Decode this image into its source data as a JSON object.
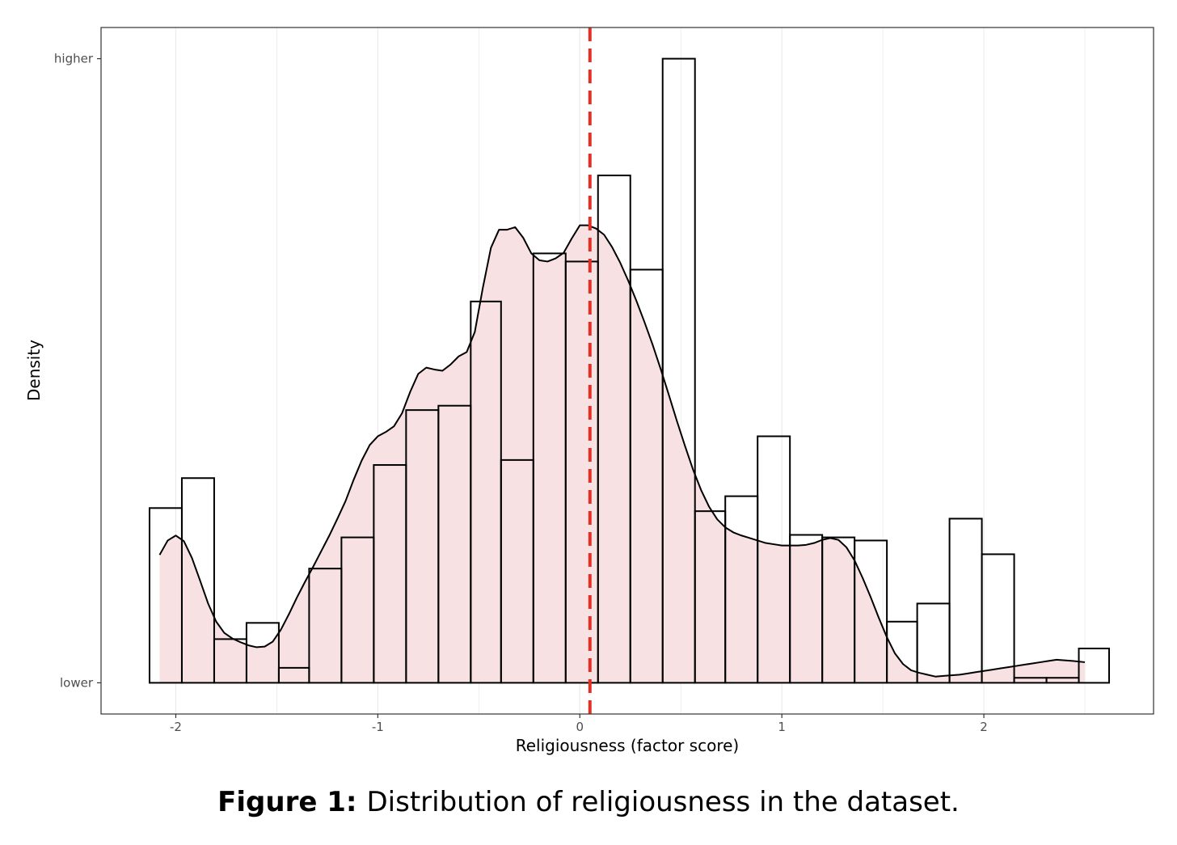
{
  "chart_data": {
    "type": "histogram",
    "title": "",
    "xlabel": "Religiousness (factor score)",
    "ylabel": "Density",
    "xlim": [
      -2.37,
      2.84
    ],
    "ylim": [
      -0.05,
      1.05
    ],
    "x_ticks": [
      {
        "value": -2,
        "label": "-2"
      },
      {
        "value": -1,
        "label": "-1"
      },
      {
        "value": 0,
        "label": "0"
      },
      {
        "value": 1,
        "label": "1"
      },
      {
        "value": 2,
        "label": "2"
      }
    ],
    "y_ticks": [
      {
        "value": 0,
        "label": "lower"
      },
      {
        "value": 1,
        "label": "higher"
      }
    ],
    "grid": true,
    "bins": {
      "edges": [
        -2.13,
        -1.97,
        -1.81,
        -1.65,
        -1.49,
        -1.34,
        -1.18,
        -1.02,
        -0.86,
        -0.7,
        -0.54,
        -0.39,
        -0.23,
        -0.07,
        0.09,
        0.25,
        0.41,
        0.57,
        0.72,
        0.88,
        1.04,
        1.2,
        1.36,
        1.52,
        1.67,
        1.83,
        1.99,
        2.15,
        2.31,
        2.47,
        2.62
      ],
      "heights": [
        0.28,
        0.328,
        0.07,
        0.096,
        0.024,
        0.183,
        0.233,
        0.349,
        0.437,
        0.444,
        0.611,
        0.357,
        0.688,
        0.675,
        0.813,
        0.662,
        1.0,
        0.275,
        0.299,
        0.395,
        0.237,
        0.233,
        0.228,
        0.098,
        0.127,
        0.263,
        0.206,
        0.008,
        0.008,
        0.055
      ]
    },
    "density": {
      "x": [
        -2.08,
        -2.04,
        -2.0,
        -1.96,
        -1.92,
        -1.88,
        -1.84,
        -1.8,
        -1.76,
        -1.72,
        -1.68,
        -1.64,
        -1.6,
        -1.56,
        -1.52,
        -1.48,
        -1.44,
        -1.4,
        -1.36,
        -1.32,
        -1.28,
        -1.24,
        -1.2,
        -1.16,
        -1.12,
        -1.08,
        -1.04,
        -1.0,
        -0.96,
        -0.92,
        -0.88,
        -0.84,
        -0.8,
        -0.76,
        -0.72,
        -0.68,
        -0.64,
        -0.6,
        -0.56,
        -0.52,
        -0.48,
        -0.44,
        -0.4,
        -0.36,
        -0.32,
        -0.28,
        -0.24,
        -0.2,
        -0.16,
        -0.12,
        -0.08,
        -0.04,
        0.0,
        0.04,
        0.08,
        0.12,
        0.16,
        0.2,
        0.24,
        0.28,
        0.32,
        0.36,
        0.4,
        0.44,
        0.48,
        0.52,
        0.56,
        0.6,
        0.64,
        0.68,
        0.72,
        0.76,
        0.8,
        0.84,
        0.88,
        0.92,
        0.96,
        1.0,
        1.04,
        1.08,
        1.12,
        1.16,
        1.2,
        1.24,
        1.28,
        1.32,
        1.36,
        1.4,
        1.44,
        1.48,
        1.52,
        1.56,
        1.6,
        1.64,
        1.68,
        1.72,
        1.76,
        1.8,
        1.84,
        1.88,
        1.92,
        1.96,
        2.0,
        2.04,
        2.08,
        2.12,
        2.16,
        2.2,
        2.24,
        2.28,
        2.32,
        2.36,
        2.4,
        2.44,
        2.5
      ],
      "y": [
        0.205,
        0.228,
        0.236,
        0.227,
        0.2,
        0.164,
        0.127,
        0.098,
        0.08,
        0.071,
        0.065,
        0.06,
        0.057,
        0.058,
        0.066,
        0.085,
        0.11,
        0.137,
        0.162,
        0.186,
        0.211,
        0.236,
        0.263,
        0.291,
        0.325,
        0.356,
        0.381,
        0.395,
        0.402,
        0.411,
        0.432,
        0.466,
        0.495,
        0.505,
        0.502,
        0.5,
        0.51,
        0.523,
        0.53,
        0.562,
        0.633,
        0.697,
        0.726,
        0.726,
        0.73,
        0.713,
        0.688,
        0.677,
        0.675,
        0.68,
        0.689,
        0.712,
        0.733,
        0.733,
        0.728,
        0.718,
        0.698,
        0.673,
        0.644,
        0.612,
        0.578,
        0.542,
        0.503,
        0.462,
        0.42,
        0.38,
        0.342,
        0.309,
        0.282,
        0.262,
        0.249,
        0.241,
        0.236,
        0.232,
        0.228,
        0.224,
        0.222,
        0.22,
        0.22,
        0.22,
        0.221,
        0.224,
        0.229,
        0.232,
        0.229,
        0.217,
        0.196,
        0.168,
        0.137,
        0.104,
        0.073,
        0.047,
        0.03,
        0.02,
        0.016,
        0.013,
        0.01,
        0.011,
        0.012,
        0.013,
        0.015,
        0.017,
        0.019,
        0.021,
        0.023,
        0.025,
        0.027,
        0.029,
        0.031,
        0.033,
        0.035,
        0.037,
        0.036,
        0.035,
        0.033
      ]
    },
    "mean_line": {
      "x": 0.05,
      "style": "dashed",
      "color": "#e03127"
    },
    "colors": {
      "fill": "#f8e1e2",
      "bar_stroke": "#000000",
      "curve": "#000000",
      "grid": "#ebebeb",
      "panel_border": "#333333"
    }
  },
  "caption": {
    "label": "Figure 1:",
    "text": "Distribution of religiousness in the dataset."
  }
}
